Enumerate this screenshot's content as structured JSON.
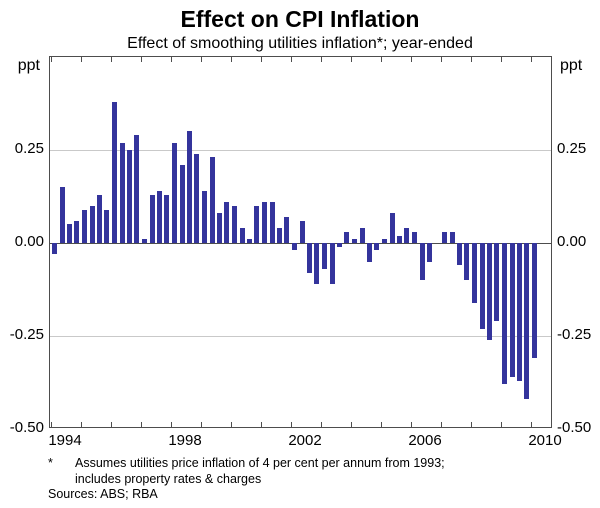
{
  "header": {
    "title": "Effect on CPI Inflation",
    "subtitle": "Effect of smoothing utilities inflation*; year-ended"
  },
  "axes": {
    "unit_left": "ppt",
    "unit_right": "ppt",
    "y_ticks": [
      {
        "label": "0.25",
        "value": 0.25
      },
      {
        "label": "0.00",
        "value": 0.0
      },
      {
        "label": "-0.25",
        "value": -0.25
      },
      {
        "label": "-0.50",
        "value": -0.5
      }
    ],
    "x_labels": [
      {
        "label": "1994",
        "year": 1994
      },
      {
        "label": "1998",
        "year": 1998
      },
      {
        "label": "2002",
        "year": 2002
      },
      {
        "label": "2006",
        "year": 2006
      },
      {
        "label": "2010",
        "year": 2010
      }
    ]
  },
  "footnote": {
    "marker": "*",
    "line1": "Assumes utilities price inflation of 4 per cent per annum from 1993;",
    "line2": "includes property rates & charges",
    "sources": "Sources: ABS; RBA"
  },
  "colors": {
    "bar": "#34349c",
    "grid": "#c9c9c9",
    "frame": "#4d4d4d",
    "text": "#000000"
  },
  "chart_data": {
    "type": "bar",
    "title": "Effect on CPI Inflation",
    "subtitle": "Effect of smoothing utilities inflation*; year-ended",
    "ylabel": "ppt",
    "ylim": [
      -0.5,
      0.5
    ],
    "gridlines": [
      0.25,
      -0.25
    ],
    "zero_axis": true,
    "grid": "on",
    "legend": "none",
    "x_start_year": 1994,
    "frequency": "quarterly",
    "categories": [
      "1994-Q1",
      "1994-Q2",
      "1994-Q3",
      "1994-Q4",
      "1995-Q1",
      "1995-Q2",
      "1995-Q3",
      "1995-Q4",
      "1996-Q1",
      "1996-Q2",
      "1996-Q3",
      "1996-Q4",
      "1997-Q1",
      "1997-Q2",
      "1997-Q3",
      "1997-Q4",
      "1998-Q1",
      "1998-Q2",
      "1998-Q3",
      "1998-Q4",
      "1999-Q1",
      "1999-Q2",
      "1999-Q3",
      "1999-Q4",
      "2000-Q1",
      "2000-Q2",
      "2000-Q3",
      "2000-Q4",
      "2001-Q1",
      "2001-Q2",
      "2001-Q3",
      "2001-Q4",
      "2002-Q1",
      "2002-Q2",
      "2002-Q3",
      "2002-Q4",
      "2003-Q1",
      "2003-Q2",
      "2003-Q3",
      "2003-Q4",
      "2004-Q1",
      "2004-Q2",
      "2004-Q3",
      "2004-Q4",
      "2005-Q1",
      "2005-Q2",
      "2005-Q3",
      "2005-Q4",
      "2006-Q1",
      "2006-Q2",
      "2006-Q3",
      "2006-Q4",
      "2007-Q1",
      "2007-Q2",
      "2007-Q3",
      "2007-Q4",
      "2008-Q1",
      "2008-Q2",
      "2008-Q3",
      "2008-Q4",
      "2009-Q1",
      "2009-Q2",
      "2009-Q3",
      "2009-Q4",
      "2010-Q1"
    ],
    "values": [
      -0.03,
      0.15,
      0.05,
      0.06,
      0.09,
      0.1,
      0.13,
      0.09,
      0.38,
      0.27,
      0.25,
      0.29,
      0.01,
      0.13,
      0.14,
      0.13,
      0.27,
      0.21,
      0.3,
      0.24,
      0.14,
      0.23,
      0.08,
      0.11,
      0.1,
      0.04,
      0.01,
      0.1,
      0.11,
      0.11,
      0.04,
      0.07,
      -0.02,
      0.06,
      -0.08,
      -0.11,
      -0.07,
      -0.11,
      -0.01,
      0.03,
      0.01,
      0.04,
      -0.05,
      -0.02,
      0.01,
      0.08,
      0.02,
      0.04,
      0.03,
      -0.1,
      -0.05,
      0.0,
      0.03,
      0.03,
      -0.06,
      -0.1,
      -0.16,
      -0.23,
      -0.26,
      -0.21,
      -0.38,
      -0.36,
      -0.37,
      -0.42,
      -0.31
    ]
  }
}
